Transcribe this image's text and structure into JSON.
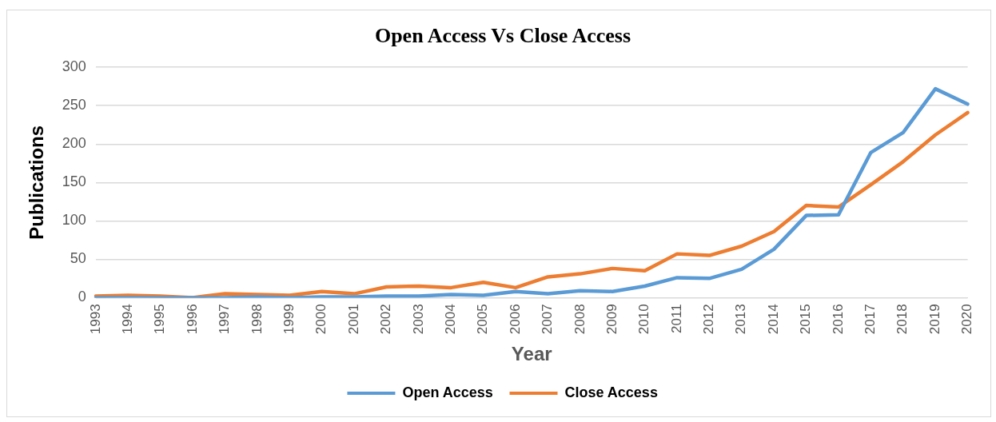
{
  "chart_data": {
    "type": "line",
    "title": "Open Access Vs Close Access",
    "xlabel": "Year",
    "ylabel": "Publications",
    "categories": [
      "1993",
      "1994",
      "1995",
      "1996",
      "1997",
      "1998",
      "1999",
      "2000",
      "2001",
      "2002",
      "2003",
      "2004",
      "2005",
      "2006",
      "2007",
      "2008",
      "2009",
      "2010",
      "2011",
      "2012",
      "2013",
      "2014",
      "2015",
      "2016",
      "2017",
      "2018",
      "2019",
      "2020"
    ],
    "series": [
      {
        "name": "Open Access",
        "color": "#5b9bd5",
        "values": [
          0,
          0,
          0,
          0,
          0,
          1,
          0,
          1,
          1,
          2,
          2,
          4,
          3,
          8,
          5,
          9,
          8,
          15,
          26,
          25,
          37,
          63,
          107,
          108,
          189,
          215,
          272,
          252
        ]
      },
      {
        "name": "Close Access",
        "color": "#ed7d31",
        "values": [
          2,
          3,
          2,
          0,
          5,
          4,
          3,
          8,
          5,
          14,
          15,
          13,
          20,
          13,
          27,
          31,
          38,
          35,
          57,
          55,
          67,
          86,
          120,
          118,
          147,
          177,
          212,
          241
        ]
      }
    ],
    "ylim": [
      0,
      300
    ],
    "yticks": [
      0,
      50,
      100,
      150,
      200,
      250,
      300
    ],
    "grid": "y",
    "legend": "bottom",
    "marker": "none",
    "line_style": "solid"
  }
}
